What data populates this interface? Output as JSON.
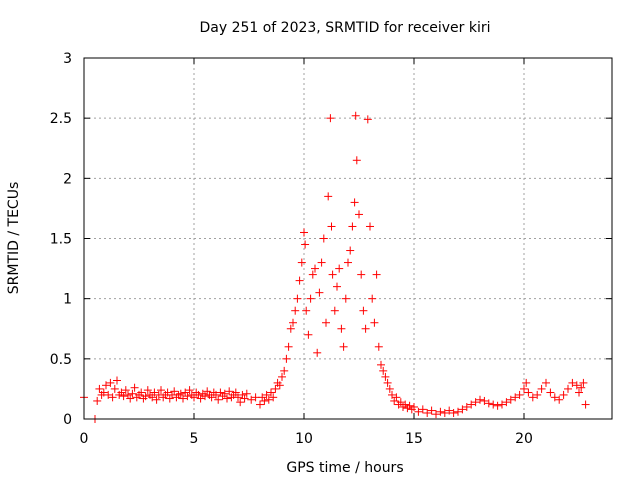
{
  "chart_data": {
    "type": "scatter",
    "title": "Day 251 of 2023, SRMTID for receiver kiri",
    "xlabel": "GPS time / hours",
    "ylabel": "SRMTID / TECUs",
    "xlim": [
      0,
      24
    ],
    "ylim": [
      0,
      3
    ],
    "x_ticks": [
      0,
      5,
      10,
      15,
      20
    ],
    "y_ticks": [
      0,
      0.5,
      1,
      1.5,
      2,
      2.5,
      3
    ],
    "x_tick_labels": [
      "0",
      "5",
      "10",
      "15",
      "20"
    ],
    "y_tick_labels": [
      "0",
      "0.5",
      "1",
      "1.5",
      "2",
      "2.5",
      "3"
    ],
    "grid": true,
    "marker": "+",
    "color": "#ff0000",
    "series": [
      {
        "name": "SRMTID",
        "points": [
          [
            0.0,
            0.18
          ],
          [
            0.5,
            0.0
          ],
          [
            0.6,
            0.15
          ],
          [
            0.7,
            0.25
          ],
          [
            0.8,
            0.2
          ],
          [
            0.9,
            0.22
          ],
          [
            1.0,
            0.28
          ],
          [
            1.1,
            0.2
          ],
          [
            1.2,
            0.3
          ],
          [
            1.3,
            0.18
          ],
          [
            1.4,
            0.25
          ],
          [
            1.5,
            0.32
          ],
          [
            1.6,
            0.2
          ],
          [
            1.7,
            0.22
          ],
          [
            1.8,
            0.19
          ],
          [
            1.9,
            0.24
          ],
          [
            2.0,
            0.2
          ],
          [
            2.1,
            0.17
          ],
          [
            2.2,
            0.21
          ],
          [
            2.3,
            0.26
          ],
          [
            2.4,
            0.18
          ],
          [
            2.5,
            0.2
          ],
          [
            2.6,
            0.22
          ],
          [
            2.7,
            0.17
          ],
          [
            2.8,
            0.19
          ],
          [
            2.9,
            0.24
          ],
          [
            3.0,
            0.2
          ],
          [
            3.1,
            0.18
          ],
          [
            3.2,
            0.22
          ],
          [
            3.3,
            0.16
          ],
          [
            3.4,
            0.2
          ],
          [
            3.5,
            0.24
          ],
          [
            3.6,
            0.18
          ],
          [
            3.7,
            0.2
          ],
          [
            3.8,
            0.22
          ],
          [
            3.9,
            0.17
          ],
          [
            4.0,
            0.2
          ],
          [
            4.1,
            0.23
          ],
          [
            4.2,
            0.18
          ],
          [
            4.3,
            0.2
          ],
          [
            4.4,
            0.21
          ],
          [
            4.5,
            0.17
          ],
          [
            4.6,
            0.22
          ],
          [
            4.7,
            0.19
          ],
          [
            4.8,
            0.24
          ],
          [
            4.9,
            0.2
          ],
          [
            5.0,
            0.18
          ],
          [
            5.1,
            0.22
          ],
          [
            5.2,
            0.2
          ],
          [
            5.3,
            0.17
          ],
          [
            5.4,
            0.21
          ],
          [
            5.5,
            0.19
          ],
          [
            5.6,
            0.23
          ],
          [
            5.7,
            0.2
          ],
          [
            5.8,
            0.18
          ],
          [
            5.9,
            0.22
          ],
          [
            6.0,
            0.2
          ],
          [
            6.1,
            0.16
          ],
          [
            6.2,
            0.22
          ],
          [
            6.3,
            0.19
          ],
          [
            6.4,
            0.21
          ],
          [
            6.5,
            0.17
          ],
          [
            6.6,
            0.23
          ],
          [
            6.7,
            0.18
          ],
          [
            6.8,
            0.2
          ],
          [
            6.9,
            0.22
          ],
          [
            7.0,
            0.18
          ],
          [
            7.1,
            0.14
          ],
          [
            7.2,
            0.2
          ],
          [
            7.3,
            0.17
          ],
          [
            7.4,
            0.21
          ],
          [
            7.6,
            0.16
          ],
          [
            7.8,
            0.18
          ],
          [
            8.0,
            0.12
          ],
          [
            8.1,
            0.18
          ],
          [
            8.2,
            0.15
          ],
          [
            8.3,
            0.2
          ],
          [
            8.4,
            0.16
          ],
          [
            8.5,
            0.22
          ],
          [
            8.6,
            0.18
          ],
          [
            8.7,
            0.25
          ],
          [
            8.8,
            0.3
          ],
          [
            8.9,
            0.28
          ],
          [
            9.0,
            0.35
          ],
          [
            9.1,
            0.4
          ],
          [
            9.2,
            0.5
          ],
          [
            9.3,
            0.6
          ],
          [
            9.4,
            0.75
          ],
          [
            9.5,
            0.8
          ],
          [
            9.6,
            0.9
          ],
          [
            9.7,
            1.0
          ],
          [
            9.8,
            1.15
          ],
          [
            9.9,
            1.3
          ],
          [
            10.0,
            1.55
          ],
          [
            10.05,
            1.45
          ],
          [
            10.1,
            0.9
          ],
          [
            10.2,
            0.7
          ],
          [
            10.3,
            1.0
          ],
          [
            10.4,
            1.2
          ],
          [
            10.5,
            1.25
          ],
          [
            10.6,
            0.55
          ],
          [
            10.7,
            1.05
          ],
          [
            10.8,
            1.3
          ],
          [
            10.9,
            1.5
          ],
          [
            11.0,
            0.8
          ],
          [
            11.1,
            1.85
          ],
          [
            11.2,
            2.5
          ],
          [
            11.25,
            1.6
          ],
          [
            11.3,
            1.2
          ],
          [
            11.4,
            0.9
          ],
          [
            11.5,
            1.1
          ],
          [
            11.6,
            1.25
          ],
          [
            11.7,
            0.75
          ],
          [
            11.8,
            0.6
          ],
          [
            11.9,
            1.0
          ],
          [
            12.0,
            1.3
          ],
          [
            12.1,
            1.4
          ],
          [
            12.2,
            1.6
          ],
          [
            12.3,
            1.8
          ],
          [
            12.35,
            2.52
          ],
          [
            12.4,
            2.15
          ],
          [
            12.5,
            1.7
          ],
          [
            12.6,
            1.2
          ],
          [
            12.7,
            0.9
          ],
          [
            12.8,
            0.75
          ],
          [
            12.9,
            2.49
          ],
          [
            13.0,
            1.6
          ],
          [
            13.1,
            1.0
          ],
          [
            13.2,
            0.8
          ],
          [
            13.3,
            1.2
          ],
          [
            13.4,
            0.6
          ],
          [
            13.5,
            0.45
          ],
          [
            13.6,
            0.4
          ],
          [
            13.7,
            0.35
          ],
          [
            13.8,
            0.3
          ],
          [
            13.9,
            0.25
          ],
          [
            14.0,
            0.2
          ],
          [
            14.1,
            0.15
          ],
          [
            14.2,
            0.18
          ],
          [
            14.3,
            0.12
          ],
          [
            14.4,
            0.14
          ],
          [
            14.5,
            0.1
          ],
          [
            14.6,
            0.12
          ],
          [
            14.7,
            0.09
          ],
          [
            14.8,
            0.11
          ],
          [
            14.9,
            0.08
          ],
          [
            15.0,
            0.1
          ],
          [
            15.2,
            0.06
          ],
          [
            15.4,
            0.08
          ],
          [
            15.6,
            0.05
          ],
          [
            15.8,
            0.07
          ],
          [
            16.0,
            0.04
          ],
          [
            16.2,
            0.06
          ],
          [
            16.4,
            0.05
          ],
          [
            16.6,
            0.07
          ],
          [
            16.8,
            0.05
          ],
          [
            17.0,
            0.06
          ],
          [
            17.2,
            0.08
          ],
          [
            17.4,
            0.1
          ],
          [
            17.6,
            0.12
          ],
          [
            17.8,
            0.14
          ],
          [
            18.0,
            0.16
          ],
          [
            18.2,
            0.15
          ],
          [
            18.4,
            0.13
          ],
          [
            18.6,
            0.12
          ],
          [
            18.8,
            0.11
          ],
          [
            19.0,
            0.12
          ],
          [
            19.2,
            0.14
          ],
          [
            19.4,
            0.16
          ],
          [
            19.6,
            0.18
          ],
          [
            19.8,
            0.2
          ],
          [
            20.0,
            0.25
          ],
          [
            20.1,
            0.3
          ],
          [
            20.2,
            0.22
          ],
          [
            20.4,
            0.18
          ],
          [
            20.6,
            0.2
          ],
          [
            20.8,
            0.25
          ],
          [
            21.0,
            0.3
          ],
          [
            21.2,
            0.22
          ],
          [
            21.4,
            0.18
          ],
          [
            21.6,
            0.16
          ],
          [
            21.8,
            0.2
          ],
          [
            22.0,
            0.25
          ],
          [
            22.2,
            0.3
          ],
          [
            22.4,
            0.28
          ],
          [
            22.5,
            0.22
          ],
          [
            22.6,
            0.26
          ],
          [
            22.7,
            0.3
          ],
          [
            22.8,
            0.12
          ]
        ]
      }
    ]
  }
}
